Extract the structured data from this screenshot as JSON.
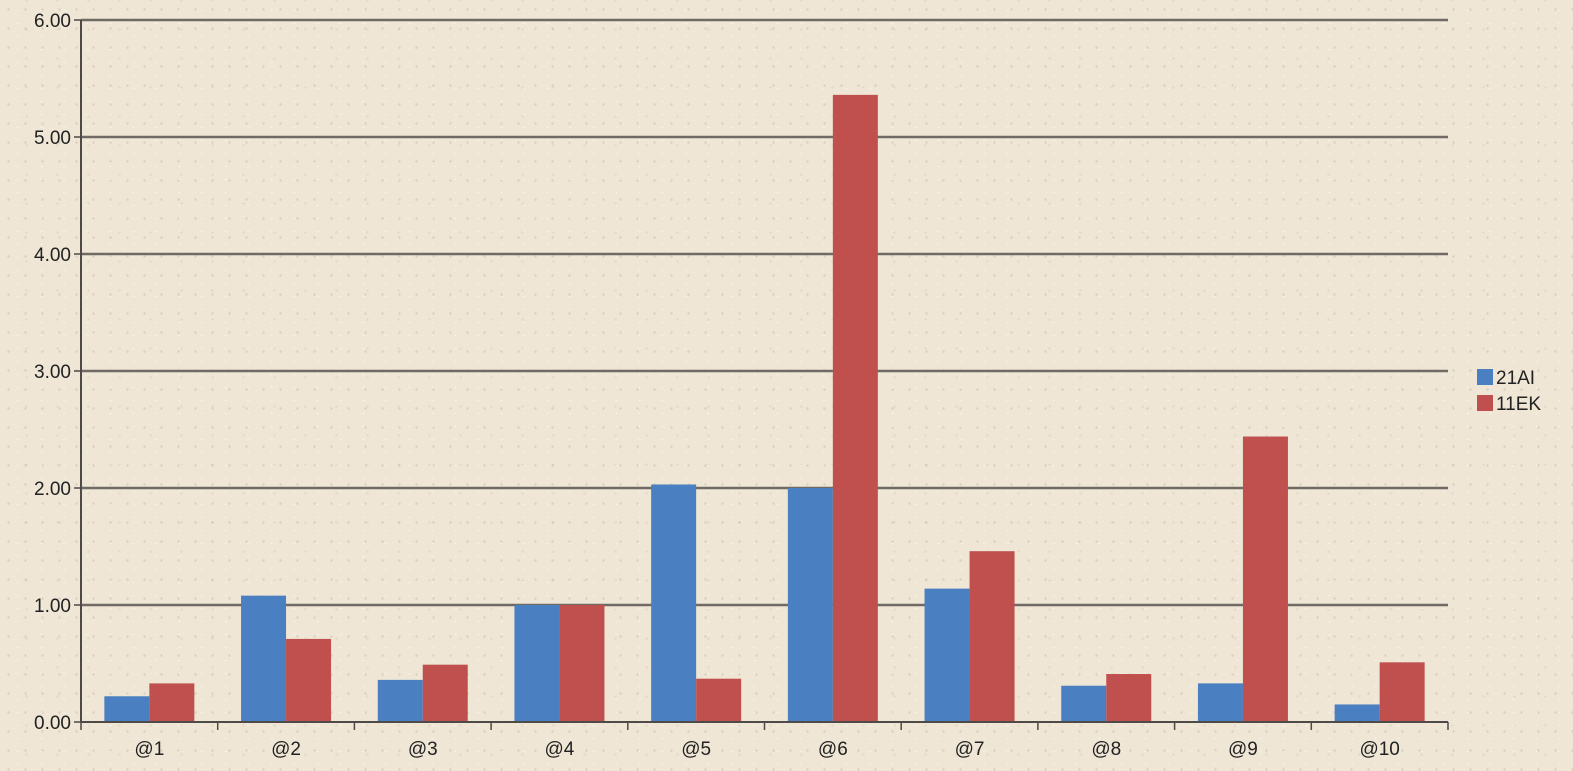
{
  "chart_data": {
    "type": "bar",
    "title": "",
    "xlabel": "",
    "ylabel": "",
    "categories": [
      "@1",
      "@2",
      "@3",
      "@4",
      "@5",
      "@6",
      "@7",
      "@8",
      "@9",
      "@10"
    ],
    "series": [
      {
        "name": "21AI",
        "color": "#4a7fc1",
        "values": [
          0.22,
          1.08,
          0.36,
          1.0,
          2.03,
          2.0,
          1.14,
          0.31,
          0.33,
          0.15
        ]
      },
      {
        "name": "11EK",
        "color": "#c0504d",
        "values": [
          0.33,
          0.71,
          0.49,
          1.0,
          0.37,
          5.36,
          1.46,
          0.41,
          2.44,
          0.51
        ]
      }
    ],
    "ylim": [
      0,
      6
    ],
    "yticks": [
      "0.00",
      "1.00",
      "2.00",
      "3.00",
      "4.00",
      "5.00",
      "6.00"
    ],
    "grid": true,
    "legend_position": "right"
  }
}
